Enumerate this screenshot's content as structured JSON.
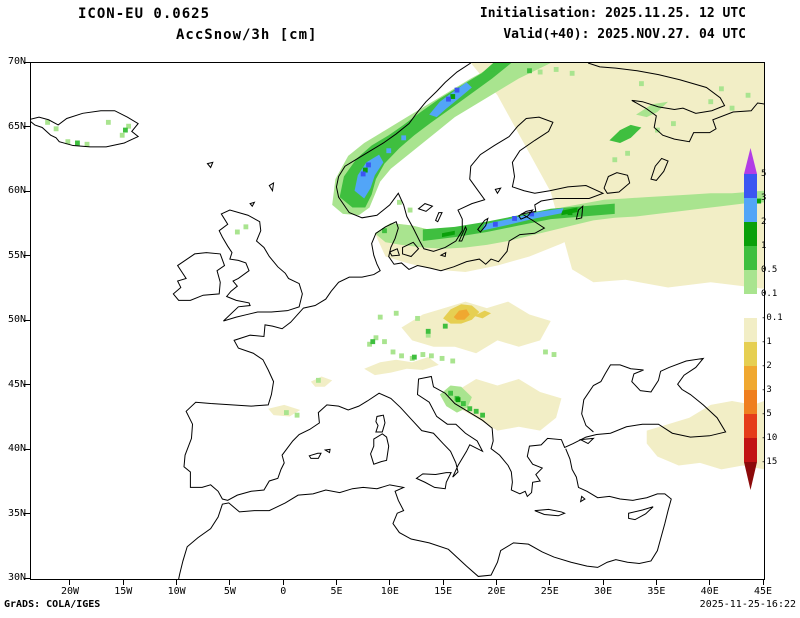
{
  "header": {
    "model": "ICON-EU 0.0625",
    "variable": "AccSnow/3h [cm]",
    "init": "Initialisation: 2025.11.25. 12 UTC",
    "valid": "Valid(+40): 2025.NOV.27. 04 UTC"
  },
  "footer": {
    "credit": "GrADS: COLA/IGES",
    "timestamp": "2025-11-25-16:22"
  },
  "axes": {
    "x_ticks": [
      {
        "label": "20W",
        "lon": -20
      },
      {
        "label": "15W",
        "lon": -15
      },
      {
        "label": "10W",
        "lon": -10
      },
      {
        "label": "5W",
        "lon": -5
      },
      {
        "label": "0",
        "lon": 0
      },
      {
        "label": "5E",
        "lon": 5
      },
      {
        "label": "10E",
        "lon": 10
      },
      {
        "label": "15E",
        "lon": 15
      },
      {
        "label": "20E",
        "lon": 20
      },
      {
        "label": "25E",
        "lon": 25
      },
      {
        "label": "30E",
        "lon": 30
      },
      {
        "label": "35E",
        "lon": 35
      },
      {
        "label": "40E",
        "lon": 40
      },
      {
        "label": "45E",
        "lon": 45
      }
    ],
    "y_ticks": [
      {
        "label": "70N",
        "lat": 70
      },
      {
        "label": "65N",
        "lat": 65
      },
      {
        "label": "60N",
        "lat": 60
      },
      {
        "label": "55N",
        "lat": 55
      },
      {
        "label": "50N",
        "lat": 50
      },
      {
        "label": "45N",
        "lat": 45
      },
      {
        "label": "40N",
        "lat": 40
      },
      {
        "label": "35N",
        "lat": 35
      },
      {
        "label": "30N",
        "lat": 30
      }
    ],
    "lon_min": -23.75,
    "lon_max": 45,
    "lat_min": 30,
    "lat_max": 70
  },
  "legend": {
    "unit": "cm",
    "labels": [
      "5",
      "3",
      "2",
      "1",
      "0.5",
      "0.1",
      "-0.1",
      "-1",
      "-2",
      "-3",
      "-5",
      "-10",
      "-15"
    ],
    "colors": [
      "#b23ce6",
      "#3b55f2",
      "#52a5f7",
      "#0aa00a",
      "#3fbf3f",
      "#a9e48f",
      "#ffffff",
      "#f2eec6",
      "#e6cf52",
      "#f0a830",
      "#ef7f1f",
      "#e53c19",
      "#c21313",
      "#8c0a0a"
    ]
  }
}
